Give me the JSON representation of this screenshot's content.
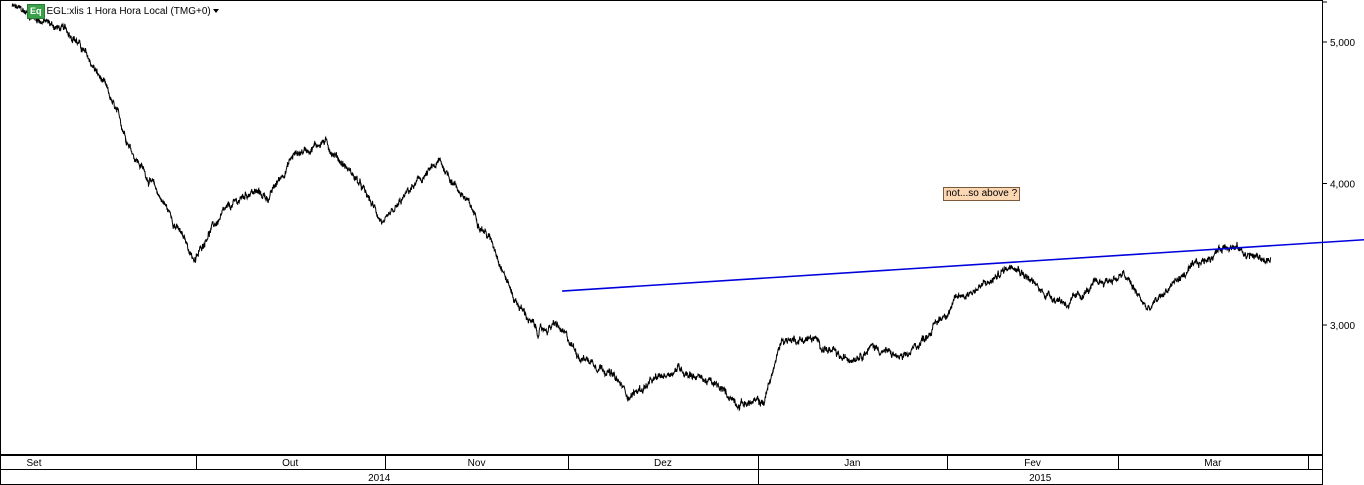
{
  "legend": {
    "badge": "Eq",
    "symbol_text": "EGL:xlis 1 Hora Hora Local (TMG+0)"
  },
  "annotation": {
    "text": "not...so above ?",
    "background_color": "#fbd7b4"
  },
  "chart_data": {
    "type": "line",
    "title": "",
    "xlabel": "",
    "ylabel": "",
    "y_scale": "linear",
    "ylim": [
      2150,
      5300
    ],
    "y_ticks": [
      3000,
      4000,
      5000
    ],
    "y_tick_labels": [
      "3,000",
      "4,000",
      "5,000"
    ],
    "grid": false,
    "price_color": "#000000",
    "trendline_color": "#0000dd",
    "months": [
      "Set",
      "Out",
      "Nov",
      "Dez",
      "Jan",
      "Fev",
      "Mar"
    ],
    "years": [
      "2014",
      "2015"
    ],
    "series": [
      {
        "x": [
          "2014-09-01",
          "2014-09-06",
          "2014-09-11",
          "2014-09-16",
          "2014-09-21",
          "2014-09-26",
          "2014-10-01",
          "2014-10-03",
          "2014-10-06",
          "2014-10-10",
          "2014-10-13",
          "2014-10-17",
          "2014-10-22",
          "2014-10-27",
          "2014-11-01",
          "2014-11-05",
          "2014-11-10",
          "2014-11-14",
          "2014-11-19",
          "2014-11-22",
          "2014-11-26",
          "2014-11-29",
          "2014-12-03",
          "2014-12-07",
          "2014-12-11",
          "2014-12-15",
          "2014-12-19",
          "2014-12-24",
          "2014-12-29",
          "2015-01-02",
          "2015-01-05",
          "2015-01-10",
          "2015-01-15",
          "2015-01-20",
          "2015-01-25",
          "2015-01-30",
          "2015-02-03",
          "2015-02-08",
          "2015-02-12",
          "2015-02-16",
          "2015-02-21",
          "2015-02-26",
          "2015-03-02",
          "2015-03-06",
          "2015-03-10",
          "2015-03-15",
          "2015-03-19",
          "2015-03-22",
          "2015-03-26"
        ],
        "y": [
          5250,
          5150,
          5050,
          4700,
          4200,
          3850,
          3450,
          3650,
          3800,
          3950,
          3900,
          4200,
          4300,
          4050,
          3700,
          3950,
          4150,
          3900,
          3550,
          3200,
          2950,
          3000,
          2780,
          2700,
          2500,
          2600,
          2700,
          2600,
          2450,
          2450,
          2900,
          2900,
          2750,
          2850,
          2750,
          3000,
          3200,
          3300,
          3450,
          3250,
          3150,
          3300,
          3350,
          3100,
          3300,
          3450,
          3580,
          3500,
          3450
        ]
      }
    ],
    "trendline": {
      "start": {
        "x": "2014-11-30",
        "y": 3240
      },
      "end": {
        "x": "2015-04-22",
        "y": 3635
      }
    }
  }
}
